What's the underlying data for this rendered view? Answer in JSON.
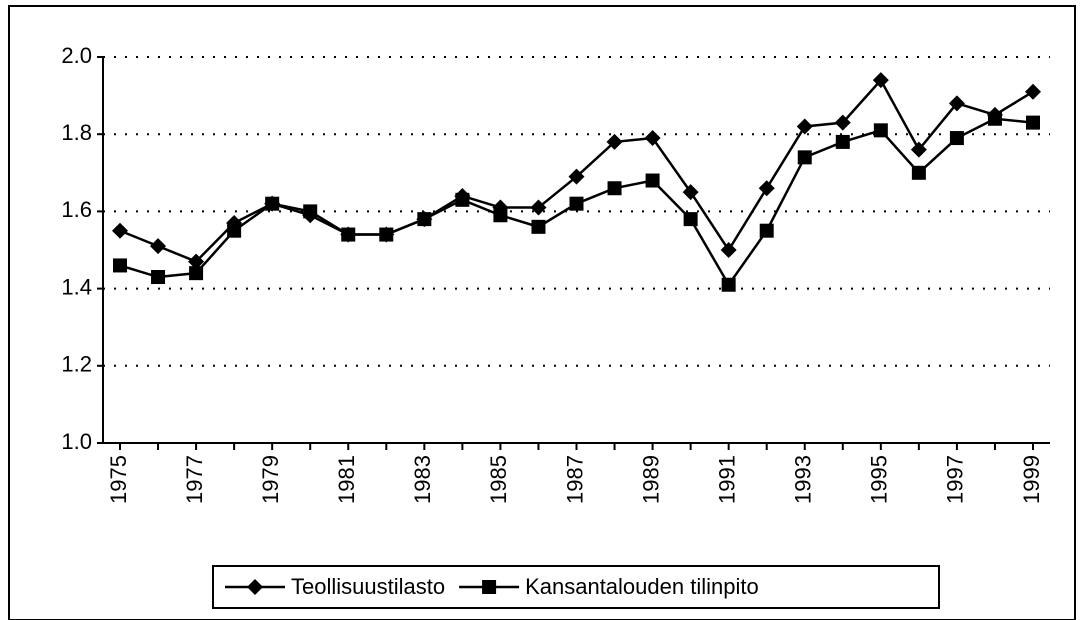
{
  "chart_data": {
    "type": "line",
    "x": [
      1975,
      1976,
      1977,
      1978,
      1979,
      1980,
      1981,
      1982,
      1983,
      1984,
      1985,
      1986,
      1987,
      1988,
      1989,
      1990,
      1991,
      1992,
      1993,
      1994,
      1995,
      1996,
      1997,
      1998,
      1999
    ],
    "series": [
      {
        "name": "Teollisuustilasto",
        "color": "#000000",
        "marker": "diamond",
        "values": [
          1.55,
          1.51,
          1.47,
          1.57,
          1.62,
          1.59,
          1.54,
          1.54,
          1.58,
          1.64,
          1.61,
          1.61,
          1.69,
          1.78,
          1.79,
          1.65,
          1.5,
          1.66,
          1.82,
          1.83,
          1.94,
          1.76,
          1.88,
          1.85,
          1.91
        ]
      },
      {
        "name": "Kansantalouden tilinpito",
        "color": "#000000",
        "marker": "square",
        "values": [
          1.46,
          1.43,
          1.44,
          1.55,
          1.62,
          1.6,
          1.54,
          1.54,
          1.58,
          1.63,
          1.59,
          1.56,
          1.62,
          1.66,
          1.68,
          1.58,
          1.41,
          1.55,
          1.74,
          1.78,
          1.81,
          1.7,
          1.79,
          1.84,
          1.83
        ]
      }
    ],
    "xlim": [
      1975,
      1999
    ],
    "xticks": [
      1975,
      1977,
      1979,
      1981,
      1983,
      1985,
      1987,
      1989,
      1991,
      1993,
      1995,
      1997,
      1999
    ],
    "ylim": [
      1.0,
      2.0
    ],
    "yticks": [
      {
        "value": 1.0,
        "label": "1.0"
      },
      1.2,
      1.4,
      1.6,
      1.8,
      {
        "value": 2.0,
        "label": "2.0"
      }
    ],
    "grid": true,
    "legend": "bottom"
  }
}
